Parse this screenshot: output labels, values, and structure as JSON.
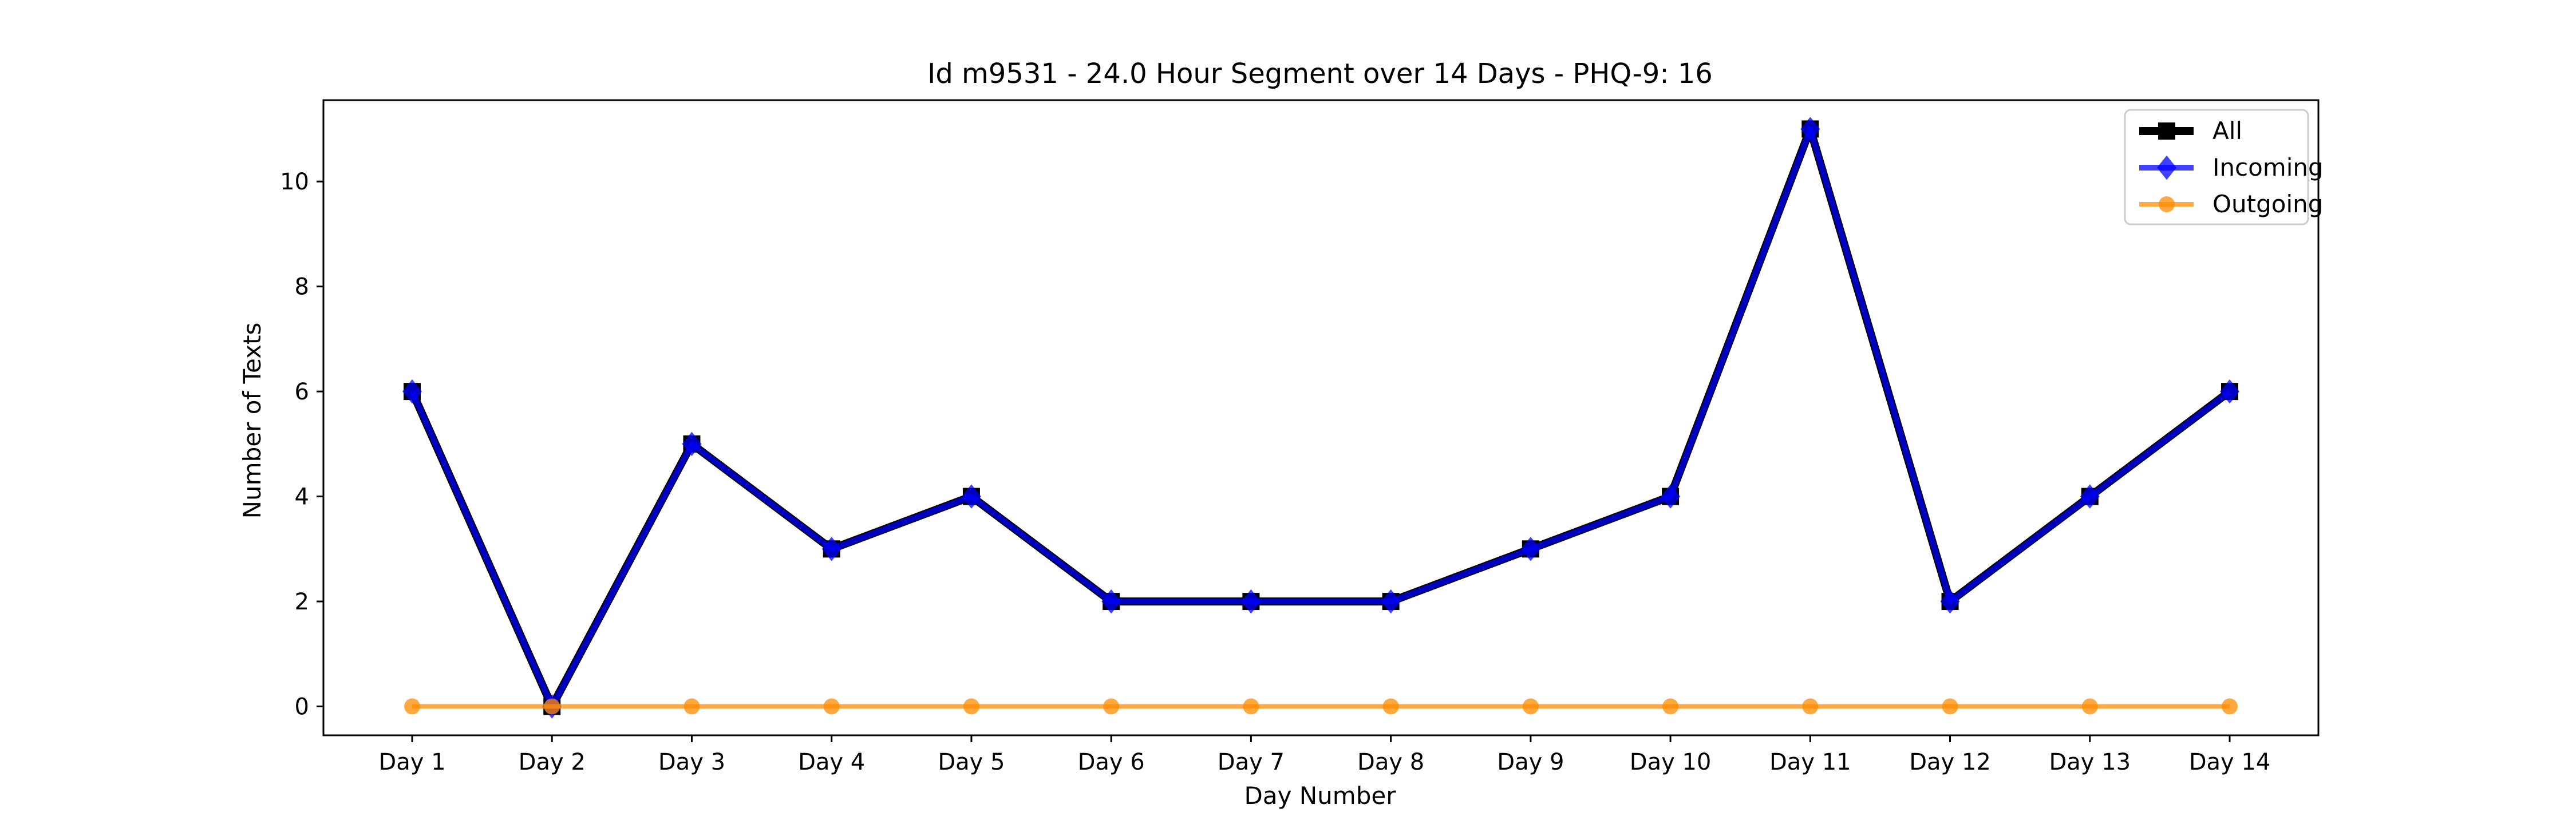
{
  "chart_data": {
    "type": "line",
    "title": "Id m9531 - 24.0 Hour Segment over 14 Days - PHQ-9: 16",
    "xlabel": "Day Number",
    "ylabel": "Number of Texts",
    "categories": [
      "Day 1",
      "Day 2",
      "Day 3",
      "Day 4",
      "Day 5",
      "Day 6",
      "Day 7",
      "Day 8",
      "Day 9",
      "Day 10",
      "Day 11",
      "Day 12",
      "Day 13",
      "Day 14"
    ],
    "ylim": [
      -0.55,
      11.55
    ],
    "yticks": [
      0,
      2,
      4,
      6,
      8,
      10
    ],
    "grid": false,
    "legend_position": "top-right",
    "series": [
      {
        "name": "All",
        "color": "#000000",
        "marker": "square",
        "values": [
          6,
          0,
          5,
          3,
          4,
          2,
          2,
          2,
          3,
          4,
          11,
          2,
          4,
          6
        ]
      },
      {
        "name": "Incoming",
        "color": "#0000ff",
        "marker": "diamond",
        "values": [
          6,
          0,
          5,
          3,
          4,
          2,
          2,
          2,
          3,
          4,
          11,
          2,
          4,
          6
        ]
      },
      {
        "name": "Outgoing",
        "color": "#ff8c00",
        "marker": "circle",
        "values": [
          0,
          0,
          0,
          0,
          0,
          0,
          0,
          0,
          0,
          0,
          0,
          0,
          0,
          0
        ]
      }
    ]
  }
}
